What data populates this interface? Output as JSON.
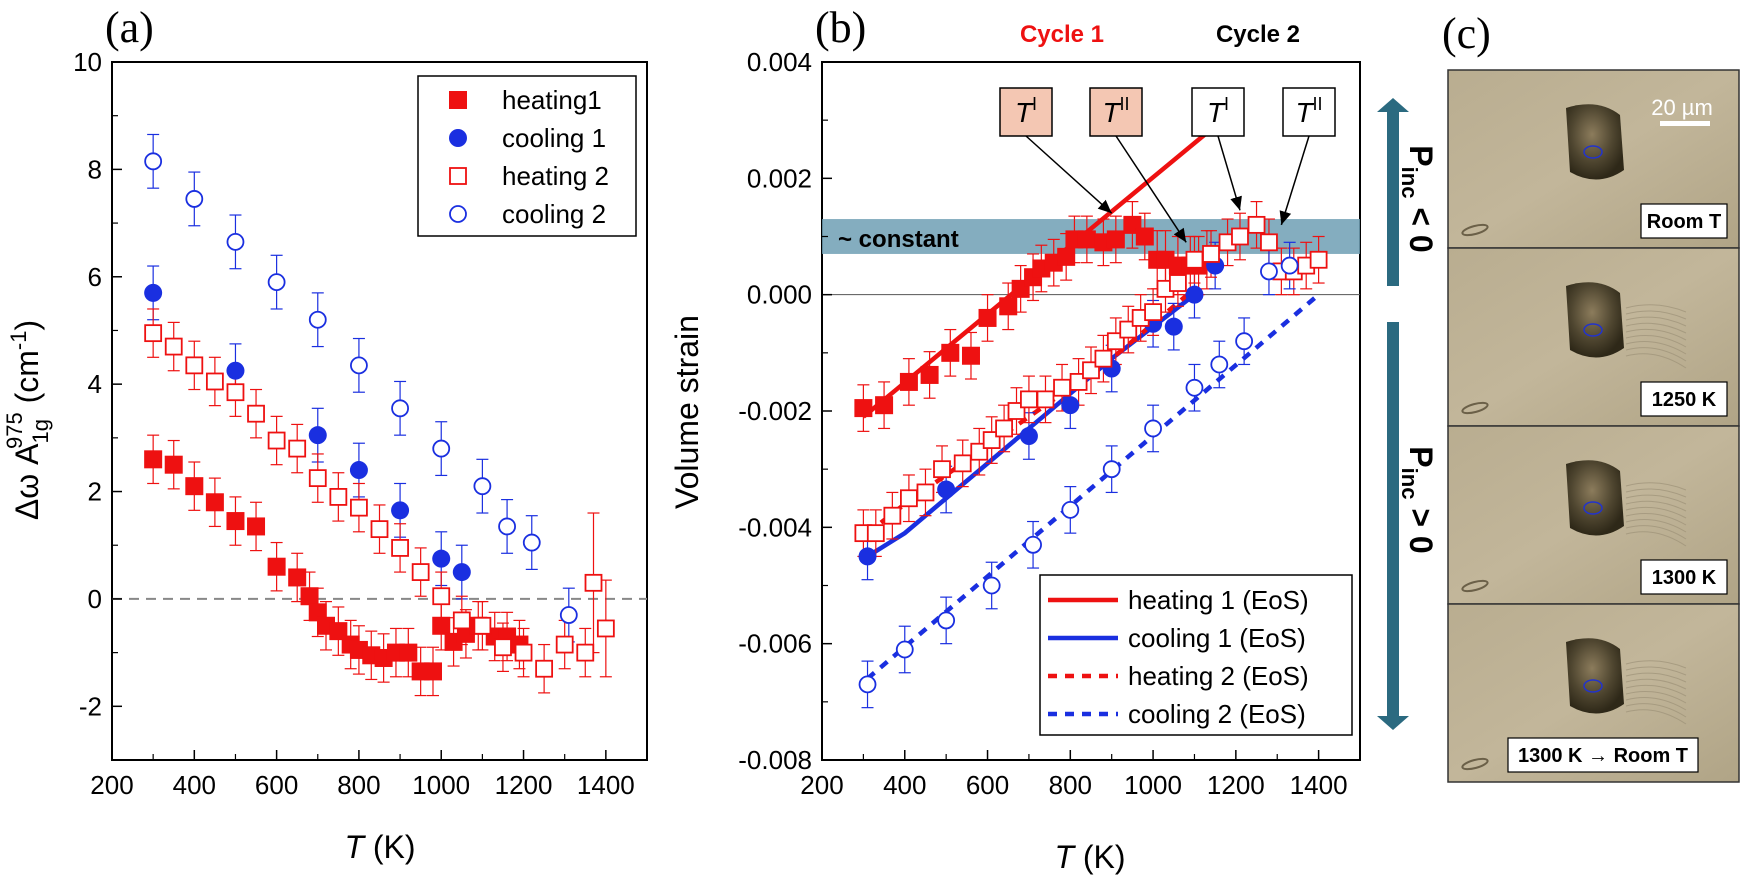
{
  "panels": {
    "a": {
      "label": "(a)",
      "chart_data": {
        "type": "scatter",
        "xlabel": "T (K)",
        "ylabel": "Δω A1g975 (cm-1)",
        "ylabel_parts": {
          "main": "Δω A",
          "sub": "1g",
          "sup": "975",
          "unit": " (cm",
          "unit_sup": "-1",
          "unit_end": ")"
        },
        "xlim": [
          200,
          1500
        ],
        "ylim": [
          -3,
          10
        ],
        "xticks": [
          200,
          400,
          600,
          800,
          1000,
          1200,
          1400
        ],
        "yticks": [
          -2,
          0,
          2,
          4,
          6,
          8,
          10
        ],
        "zero_line": true,
        "legend_position": "top-right",
        "series": [
          {
            "name": "heating1",
            "marker": "square-filled",
            "color": "#ee1111",
            "x": [
              300,
              350,
              400,
              450,
              500,
              550,
              600,
              650,
              680,
              700,
              720,
              750,
              780,
              800,
              830,
              860,
              890,
              920,
              950,
              980,
              1000,
              1030,
              1060,
              1090,
              1130,
              1160,
              1190
            ],
            "y": [
              2.6,
              2.5,
              2.1,
              1.8,
              1.45,
              1.35,
              0.6,
              0.4,
              0.05,
              -0.25,
              -0.5,
              -0.6,
              -0.85,
              -0.95,
              -1.05,
              -1.1,
              -1.0,
              -1.0,
              -1.35,
              -1.35,
              -0.5,
              -0.8,
              -0.65,
              -0.5,
              -0.7,
              -0.7,
              -0.85
            ],
            "err": [
              0.45,
              0.45,
              0.45,
              0.45,
              0.45,
              0.45,
              0.45,
              0.45,
              0.45,
              0.45,
              0.45,
              0.45,
              0.45,
              0.45,
              0.45,
              0.45,
              0.45,
              0.45,
              0.45,
              0.45,
              0.45,
              0.45,
              0.45,
              0.45,
              0.45,
              0.45,
              0.45
            ]
          },
          {
            "name": "cooling 1",
            "marker": "circle-filled",
            "color": "#1a2fe0",
            "x": [
              300,
              500,
              700,
              800,
              900,
              1000,
              1050
            ],
            "y": [
              5.7,
              4.25,
              3.05,
              2.4,
              1.65,
              0.75,
              0.5
            ],
            "err": [
              0.5,
              0.5,
              0.5,
              0.5,
              0.5,
              0.5,
              0.5
            ]
          },
          {
            "name": "heating 2",
            "marker": "square-open",
            "color": "#ee1111",
            "x": [
              300,
              350,
              400,
              450,
              500,
              550,
              600,
              650,
              700,
              750,
              800,
              850,
              900,
              950,
              1000,
              1050,
              1100,
              1150,
              1200,
              1250,
              1300,
              1350,
              1370,
              1400
            ],
            "y": [
              4.95,
              4.7,
              4.35,
              4.05,
              3.85,
              3.45,
              2.95,
              2.8,
              2.25,
              1.9,
              1.7,
              1.3,
              0.95,
              0.5,
              0.05,
              -0.4,
              -0.5,
              -0.9,
              -1.0,
              -1.3,
              -0.85,
              -1.0,
              0.3,
              -0.55
            ],
            "err": [
              0.45,
              0.45,
              0.45,
              0.45,
              0.45,
              0.45,
              0.45,
              0.45,
              0.45,
              0.45,
              0.45,
              0.45,
              0.45,
              0.45,
              0.45,
              0.45,
              0.45,
              0.45,
              0.45,
              0.45,
              0.45,
              0.45,
              1.3,
              0.9
            ]
          },
          {
            "name": "cooling 2",
            "marker": "circle-open",
            "color": "#1a2fe0",
            "x": [
              300,
              400,
              500,
              600,
              700,
              800,
              900,
              1000,
              1100,
              1160,
              1220,
              1310
            ],
            "y": [
              8.15,
              7.45,
              6.65,
              5.9,
              5.2,
              4.35,
              3.55,
              2.8,
              2.1,
              1.35,
              1.05,
              -0.3
            ],
            "err": [
              0.5,
              0.5,
              0.5,
              0.5,
              0.5,
              0.5,
              0.5,
              0.5,
              0.5,
              0.5,
              0.5,
              0.5
            ]
          }
        ]
      }
    },
    "b": {
      "label": "(b)",
      "cycle1_label": "Cycle 1",
      "cycle2_label": "Cycle 2",
      "band_label": "~ constant",
      "annotations": [
        {
          "text": "T",
          "sup": "I",
          "cycle": 1,
          "target_x": 900,
          "target_y": 0.0014
        },
        {
          "text": "T",
          "sup": "II",
          "cycle": 1,
          "target_x": 1080,
          "target_y": 0.0009
        },
        {
          "text": "T",
          "sup": "I",
          "cycle": 2,
          "target_x": 1210,
          "target_y": 0.00145
        },
        {
          "text": "T",
          "sup": "II",
          "cycle": 2,
          "target_x": 1310,
          "target_y": 0.0012
        }
      ],
      "arrow_upper": {
        "label": "P",
        "sub": "inc",
        "rel": " < 0"
      },
      "arrow_lower": {
        "label": "P",
        "sub": "inc",
        "rel": " > 0"
      },
      "chart_data": {
        "type": "scatter",
        "xlabel": "T (K)",
        "ylabel": "Volume strain",
        "xlim": [
          200,
          1500
        ],
        "ylim": [
          -0.008,
          0.004
        ],
        "xticks": [
          200,
          400,
          600,
          800,
          1000,
          1200,
          1400
        ],
        "yticks": [
          -0.008,
          -0.006,
          -0.004,
          -0.002,
          0.0,
          0.002,
          0.004
        ],
        "ytick_labels": [
          "-0.008",
          "-0.006",
          "-0.004",
          "-0.002",
          "0.000",
          "0.002",
          "0.004"
        ],
        "band": {
          "y0": 0.0007,
          "y1": 0.0013
        },
        "legend_position": "bottom-right",
        "series": [
          {
            "name": "heating 1",
            "marker": "square-filled",
            "color": "#ee1111",
            "x": [
              300,
              350,
              410,
              460,
              510,
              560,
              600,
              650,
              680,
              710,
              730,
              760,
              790,
              810,
              840,
              880,
              910,
              950,
              980
            ],
            "y": [
              -0.00195,
              -0.0019,
              -0.0015,
              -0.00138,
              -0.001,
              -0.00105,
              -0.0004,
              -0.0002,
              0.0001,
              0.0003,
              0.00045,
              0.00055,
              0.00065,
              0.00095,
              0.00095,
              0.0009,
              0.00095,
              0.0012,
              0.001
            ],
            "err": [
              0.0004,
              0.0004,
              0.0004,
              0.0004,
              0.0004,
              0.0004,
              0.0004,
              0.0004,
              0.0004,
              0.0004,
              0.0004,
              0.0004,
              0.0004,
              0.0004,
              0.0004,
              0.0004,
              0.0004,
              0.0004,
              0.0004
            ]
          },
          {
            "name": "heating 1 (late)",
            "marker": "square-filled",
            "color": "#ee1111",
            "x": [
              1010,
              1030,
              1060,
              1090,
              1110,
              1130
            ],
            "y": [
              0.0006,
              0.0006,
              0.0005,
              0.0005,
              0.0005,
              0.0006
            ],
            "err": [
              0.0005,
              0.0005,
              0.0005,
              0.0005,
              0.0005,
              0.0005
            ]
          },
          {
            "name": "cooling 1",
            "marker": "circle-filled",
            "color": "#1a2fe0",
            "x": [
              310,
              500,
              700,
              800,
              900,
              1000,
              1050,
              1100,
              1150
            ],
            "y": [
              -0.0045,
              -0.00335,
              -0.00243,
              -0.0019,
              -0.00127,
              -0.0005,
              -0.00055,
              0.0,
              0.0005
            ],
            "err": [
              0.0004,
              0.0004,
              0.0004,
              0.0004,
              0.0004,
              0.0004,
              0.0004,
              0.0004,
              0.0004
            ]
          },
          {
            "name": "heating 2",
            "marker": "square-open",
            "color": "#ee1111",
            "x": [
              300,
              330,
              370,
              410,
              450,
              490,
              540,
              580,
              610,
              640,
              670,
              700,
              740,
              780,
              820,
              850,
              880,
              910,
              940,
              970,
              1000,
              1030,
              1060,
              1100,
              1140,
              1180,
              1210,
              1250,
              1280,
              1310,
              1340,
              1370,
              1400
            ],
            "y": [
              -0.0041,
              -0.0041,
              -0.0038,
              -0.0035,
              -0.0034,
              -0.003,
              -0.0029,
              -0.0027,
              -0.0025,
              -0.0023,
              -0.002,
              -0.0018,
              -0.0018,
              -0.0016,
              -0.0015,
              -0.0013,
              -0.0011,
              -0.0008,
              -0.0006,
              -0.0004,
              -0.0003,
              0.0001,
              0.0002,
              0.0006,
              0.0007,
              0.0009,
              0.001,
              0.0012,
              0.0009,
              0.0004,
              0.0004,
              0.0005,
              0.0006
            ],
            "err": [
              0.0004,
              0.0004,
              0.0004,
              0.0004,
              0.0004,
              0.0004,
              0.0004,
              0.0004,
              0.0004,
              0.0004,
              0.0004,
              0.0004,
              0.0004,
              0.0004,
              0.0004,
              0.0004,
              0.0004,
              0.0004,
              0.0004,
              0.0004,
              0.0004,
              0.0004,
              0.0004,
              0.0004,
              0.0004,
              0.0004,
              0.0004,
              0.0004,
              0.0004,
              0.0004,
              0.0004,
              0.0004,
              0.0004
            ]
          },
          {
            "name": "cooling 2",
            "marker": "circle-open",
            "color": "#1a2fe0",
            "x": [
              310,
              400,
              500,
              610,
              710,
              800,
              900,
              1000,
              1100,
              1160,
              1220,
              1280,
              1330
            ],
            "y": [
              -0.0067,
              -0.0061,
              -0.0056,
              -0.005,
              -0.0043,
              -0.0037,
              -0.003,
              -0.0023,
              -0.0016,
              -0.0012,
              -0.0008,
              0.0004,
              0.0005
            ],
            "err": [
              0.0004,
              0.0004,
              0.0004,
              0.0004,
              0.0004,
              0.0004,
              0.0004,
              0.0004,
              0.0004,
              0.0004,
              0.0004,
              0.0004,
              0.0004
            ]
          }
        ],
        "eos_curves": [
          {
            "name": "heating 1 (EoS)",
            "style": "solid",
            "color": "#ee1111",
            "x": [
              300,
              1150
            ],
            "y": [
              -0.0021,
              0.0029
            ]
          },
          {
            "name": "cooling 1 (EoS)",
            "style": "solid",
            "color": "#1a2fe0",
            "x": [
              310,
              400,
              500,
              600,
              700,
              800,
              900,
              1000,
              1100
            ],
            "y": [
              -0.0045,
              -0.0041,
              -0.0035,
              -0.0029,
              -0.0023,
              -0.0017,
              -0.0011,
              -0.00055,
              0.0
            ]
          },
          {
            "name": "heating 2 (EoS)",
            "style": "dashed",
            "color": "#ee1111",
            "x": [
              310,
              400,
              500,
              600,
              700,
              800,
              900,
              1000,
              1100
            ],
            "y": [
              -0.0041,
              -0.0036,
              -0.0031,
              -0.0026,
              -0.0021,
              -0.0016,
              -0.0011,
              -0.0005,
              0.0001
            ]
          },
          {
            "name": "cooling 2 (EoS)",
            "style": "dashed",
            "color": "#1a2fe0",
            "x": [
              310,
              1400
            ],
            "y": [
              -0.0066,
              0.0
            ]
          }
        ]
      }
    },
    "c": {
      "label": "(c)",
      "scale_bar": "20 µm",
      "frames": [
        {
          "caption": "Room T"
        },
        {
          "caption": "1250 K"
        },
        {
          "caption": "1300 K"
        },
        {
          "caption": "1300 K → Room T"
        }
      ]
    }
  },
  "colors": {
    "red": "#ee1111",
    "blue": "#1a2fe0",
    "band": "#6f9fb4",
    "arrow": "#2b6a80",
    "peach": "#f4c7b3",
    "photo": "#b8ab8e"
  }
}
